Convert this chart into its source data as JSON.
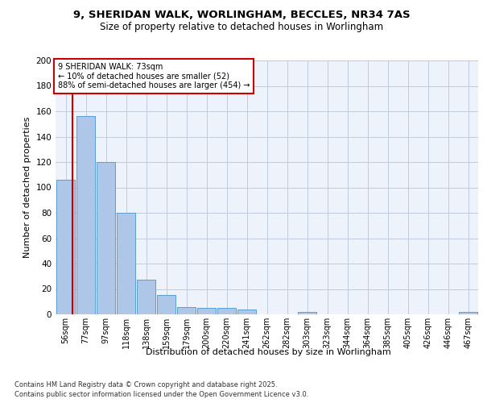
{
  "title_line1": "9, SHERIDAN WALK, WORLINGHAM, BECCLES, NR34 7AS",
  "title_line2": "Size of property relative to detached houses in Worlingham",
  "xlabel": "Distribution of detached houses by size in Worlingham",
  "ylabel": "Number of detached properties",
  "categories": [
    "56sqm",
    "77sqm",
    "97sqm",
    "118sqm",
    "138sqm",
    "159sqm",
    "179sqm",
    "200sqm",
    "220sqm",
    "241sqm",
    "262sqm",
    "282sqm",
    "303sqm",
    "323sqm",
    "344sqm",
    "364sqm",
    "385sqm",
    "405sqm",
    "426sqm",
    "446sqm",
    "467sqm"
  ],
  "values": [
    106,
    156,
    120,
    80,
    27,
    15,
    6,
    5,
    5,
    4,
    0,
    0,
    2,
    0,
    0,
    0,
    0,
    0,
    0,
    0,
    2
  ],
  "bar_color": "#aec6e8",
  "bar_edge_color": "#5a9fd4",
  "vline_color": "#cc0000",
  "annotation_text": "9 SHERIDAN WALK: 73sqm\n← 10% of detached houses are smaller (52)\n88% of semi-detached houses are larger (454) →",
  "annotation_box_color": "#cc0000",
  "ylim": [
    0,
    200
  ],
  "yticks": [
    0,
    20,
    40,
    60,
    80,
    100,
    120,
    140,
    160,
    180,
    200
  ],
  "background_color": "#eef2fa",
  "grid_color": "#c0ccdd",
  "footer_line1": "Contains HM Land Registry data © Crown copyright and database right 2025.",
  "footer_line2": "Contains public sector information licensed under the Open Government Licence v3.0.",
  "title_fontsize": 9.5,
  "subtitle_fontsize": 8.5,
  "bar_width": 0.9
}
